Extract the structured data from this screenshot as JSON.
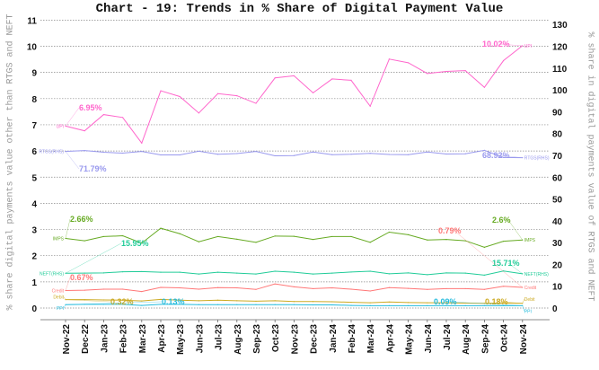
{
  "chart_data": {
    "type": "line",
    "title": "Chart - 19: Trends in % Share of Digital Payment Value",
    "ylabel_left": "% share digital payments value other than RTGS and NEFT",
    "ylabel_right": "% share in digital payments value of RTGS and NEFT",
    "ylim_left": [
      0,
      11
    ],
    "ylim_right": [
      0,
      130
    ],
    "yticks_left": [
      "0",
      "1",
      "2",
      "3",
      "4",
      "5",
      "6",
      "7",
      "8",
      "9",
      "10",
      "11"
    ],
    "yticks_right": [
      "0",
      "10",
      "20",
      "30",
      "40",
      "50",
      "60",
      "70",
      "80",
      "90",
      "100",
      "110",
      "120",
      "130"
    ],
    "grid": true,
    "categories": [
      "Nov-22",
      "Dec-22",
      "Jan-23",
      "Feb-23",
      "Mar-23",
      "Apr-23",
      "May-23",
      "Jun-23",
      "Jul-23",
      "Aug-23",
      "Sep-23",
      "Oct-23",
      "Nov-23",
      "Dec-23",
      "Jan-24",
      "Feb-24",
      "Mar-24",
      "Apr-24",
      "May-24",
      "Jun-24",
      "Jul-24",
      "Aug-24",
      "Sep-24",
      "Oct-24",
      "Nov-24"
    ],
    "series": [
      {
        "name": "UPI",
        "axis": "left",
        "color": "#ff66cc",
        "values": [
          6.95,
          6.77,
          7.39,
          7.28,
          6.3,
          8.3,
          8.08,
          7.45,
          8.19,
          8.11,
          7.82,
          8.79,
          8.87,
          8.22,
          8.75,
          8.7,
          7.71,
          9.51,
          9.37,
          8.96,
          9.04,
          9.07,
          8.43,
          9.45,
          10.02
        ]
      },
      {
        "name": "RTGS(RHS)",
        "axis": "right",
        "color": "#9999ee",
        "values": [
          71.79,
          72.2,
          71.4,
          71.0,
          71.8,
          70.2,
          70.2,
          71.9,
          70.5,
          70.8,
          71.8,
          69.8,
          69.9,
          71.5,
          70.3,
          70.5,
          70.9,
          70.4,
          70.3,
          71.5,
          70.6,
          70.7,
          72.3,
          69.0,
          68.92
        ]
      },
      {
        "name": "IMPS",
        "axis": "left",
        "color": "#66aa22",
        "values": [
          2.66,
          2.57,
          2.73,
          2.76,
          2.48,
          3.05,
          2.84,
          2.53,
          2.73,
          2.63,
          2.51,
          2.75,
          2.74,
          2.62,
          2.73,
          2.73,
          2.51,
          2.9,
          2.8,
          2.6,
          2.62,
          2.57,
          2.32,
          2.55,
          2.6
        ]
      },
      {
        "name": "NEFT(RHS)",
        "axis": "right",
        "color": "#22cc99",
        "values": [
          15.95,
          16.0,
          16.1,
          16.6,
          16.7,
          16.4,
          16.4,
          15.6,
          16.4,
          16.0,
          15.6,
          16.9,
          16.4,
          15.6,
          16.0,
          16.5,
          16.9,
          15.7,
          16.1,
          15.3,
          16.1,
          16.0,
          15.1,
          17.0,
          15.71
        ]
      },
      {
        "name": "Credit",
        "axis": "left",
        "color": "#ff7777",
        "values": [
          0.67,
          0.68,
          0.72,
          0.72,
          0.63,
          0.79,
          0.77,
          0.72,
          0.78,
          0.77,
          0.71,
          0.92,
          0.81,
          0.74,
          0.77,
          0.72,
          0.65,
          0.78,
          0.75,
          0.71,
          0.74,
          0.74,
          0.71,
          0.83,
          0.79
        ]
      },
      {
        "name": "Debit",
        "axis": "left",
        "color": "#ccaa22",
        "values": [
          0.32,
          0.32,
          0.31,
          0.3,
          0.27,
          0.33,
          0.3,
          0.28,
          0.3,
          0.28,
          0.26,
          0.28,
          0.25,
          0.25,
          0.24,
          0.22,
          0.2,
          0.23,
          0.21,
          0.2,
          0.2,
          0.19,
          0.18,
          0.19,
          0.18
        ]
      },
      {
        "name": "PPI",
        "axis": "left",
        "color": "#22bbdd",
        "values": [
          0.13,
          0.14,
          0.14,
          0.14,
          0.1,
          0.14,
          0.14,
          0.13,
          0.13,
          0.13,
          0.13,
          0.13,
          0.13,
          0.12,
          0.12,
          0.1,
          0.09,
          0.09,
          0.09,
          0.09,
          0.09,
          0.09,
          0.09,
          0.09,
          0.09
        ]
      }
    ],
    "annotations": [
      {
        "series": 0,
        "point": 0,
        "text": "6.95%"
      },
      {
        "series": 1,
        "point": 0,
        "text": "71.79%"
      },
      {
        "series": 2,
        "point": 0,
        "text": "2.66%"
      },
      {
        "series": 3,
        "point": 0,
        "text": "15.95%"
      },
      {
        "series": 4,
        "point": 0,
        "text": "0.67%"
      },
      {
        "series": 5,
        "point": 0,
        "text": "0.32%"
      },
      {
        "series": 6,
        "point": 0,
        "text": "0.13%"
      },
      {
        "series": 0,
        "point": 24,
        "text": "10.02%"
      },
      {
        "series": 1,
        "point": 24,
        "text": "68.92%"
      },
      {
        "series": 2,
        "point": 24,
        "text": "2.6%"
      },
      {
        "series": 3,
        "point": 24,
        "text": "15.71%"
      },
      {
        "series": 4,
        "point": 24,
        "text": "0.79%"
      },
      {
        "series": 5,
        "point": 24,
        "text": "0.18%"
      },
      {
        "series": 6,
        "point": 24,
        "text": "0.09%"
      }
    ]
  }
}
